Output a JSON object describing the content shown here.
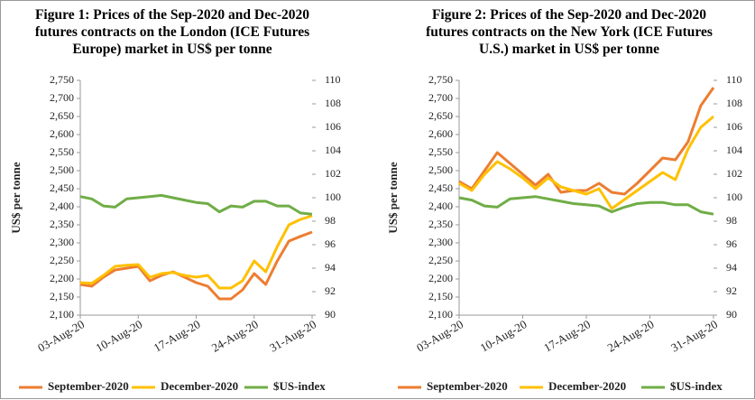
{
  "chart_data": [
    {
      "type": "line",
      "title": "Figure 1: Prices of the Sep-2020 and Dec-2020 futures contracts on the London (ICE Futures Europe) market in US$ per tonne",
      "ylabel": "US$ per tonne",
      "categories": [
        "03-Aug-20",
        null,
        null,
        null,
        null,
        "10-Aug-20",
        null,
        null,
        null,
        null,
        "17-Aug-20",
        null,
        null,
        null,
        null,
        "24-Aug-20",
        null,
        null,
        null,
        null,
        "31-Aug-20"
      ],
      "ylim": [
        2100,
        2750
      ],
      "yticks": [
        {
          "value": 2100,
          "label": "2,100"
        },
        {
          "value": 2150,
          "label": "2,150"
        },
        {
          "value": 2200,
          "label": "2,200"
        },
        {
          "value": 2250,
          "label": "2,250"
        },
        {
          "value": 2300,
          "label": "2,300"
        },
        {
          "value": 2350,
          "label": "2,350"
        },
        {
          "value": 2400,
          "label": "2,400"
        },
        {
          "value": 2450,
          "label": "2,450"
        },
        {
          "value": 2500,
          "label": "2,500"
        },
        {
          "value": 2550,
          "label": "2,550"
        },
        {
          "value": 2600,
          "label": "2,600"
        },
        {
          "value": 2650,
          "label": "2,650"
        },
        {
          "value": 2700,
          "label": "2,700"
        },
        {
          "value": 2750,
          "label": "2,750"
        }
      ],
      "y2lim": [
        90,
        110
      ],
      "y2ticks": [
        90,
        92,
        94,
        96,
        98,
        100,
        102,
        104,
        106,
        108,
        110
      ],
      "legend": "bottom",
      "series": [
        {
          "name": "September-2020",
          "color": "#ed7d31",
          "values": [
            2185,
            2180,
            2205,
            2225,
            2230,
            2235,
            2195,
            2210,
            2220,
            2205,
            2190,
            2180,
            2145,
            2145,
            2170,
            2215,
            2185,
            2250,
            2305,
            2318,
            2330
          ]
        },
        {
          "name": "December-2020",
          "color": "#ffc000",
          "values": [
            2190,
            2188,
            2210,
            2235,
            2238,
            2240,
            2205,
            2215,
            2218,
            2210,
            2205,
            2210,
            2175,
            2175,
            2195,
            2250,
            2220,
            2290,
            2350,
            2365,
            2375
          ]
        },
        {
          "name": "$US-index",
          "color": "#70ad47",
          "axis": "y2",
          "values": [
            100.1,
            99.9,
            99.3,
            99.2,
            99.9,
            100,
            100.1,
            100.2,
            100,
            99.8,
            99.6,
            99.5,
            98.8,
            99.3,
            99.2,
            99.7,
            99.7,
            99.3,
            99.3,
            98.7,
            98.6
          ]
        }
      ]
    },
    {
      "type": "line",
      "title": "Figure 2: Prices of the Sep-2020 and Dec-2020 futures contracts on the New York (ICE Futures U.S.) market in US$ per tonne",
      "ylabel": "US$ per tonne",
      "categories": [
        "03-Aug-20",
        null,
        null,
        null,
        null,
        "10-Aug-20",
        null,
        null,
        null,
        null,
        "17-Aug-20",
        null,
        null,
        null,
        null,
        "24-Aug-20",
        null,
        null,
        null,
        null,
        "31-Aug-20"
      ],
      "ylim": [
        2100,
        2750
      ],
      "yticks": [
        {
          "value": 2100,
          "label": "2,100"
        },
        {
          "value": 2150,
          "label": "2,150"
        },
        {
          "value": 2200,
          "label": "2,200"
        },
        {
          "value": 2250,
          "label": "2,250"
        },
        {
          "value": 2300,
          "label": "2,300"
        },
        {
          "value": 2350,
          "label": "2,350"
        },
        {
          "value": 2400,
          "label": "2,400"
        },
        {
          "value": 2450,
          "label": "2,450"
        },
        {
          "value": 2500,
          "label": "2,500"
        },
        {
          "value": 2550,
          "label": "2,550"
        },
        {
          "value": 2600,
          "label": "2,600"
        },
        {
          "value": 2650,
          "label": "2,650"
        },
        {
          "value": 2700,
          "label": "2,700"
        },
        {
          "value": 2750,
          "label": "2,750"
        }
      ],
      "y2lim": [
        90,
        110
      ],
      "y2ticks": [
        90,
        92,
        94,
        96,
        98,
        100,
        102,
        104,
        106,
        108,
        110
      ],
      "legend": "bottom",
      "series": [
        {
          "name": "September-2020",
          "color": "#ed7d31",
          "values": [
            2470,
            2450,
            2500,
            2550,
            2520,
            2490,
            2460,
            2490,
            2440,
            2445,
            2445,
            2465,
            2440,
            2435,
            2465,
            2500,
            2535,
            2530,
            2580,
            2680,
            2730
          ]
        },
        {
          "name": "December-2020",
          "color": "#ffc000",
          "values": [
            2465,
            2445,
            2490,
            2525,
            2505,
            2480,
            2450,
            2480,
            2455,
            2445,
            2435,
            2450,
            2395,
            2420,
            2445,
            2470,
            2495,
            2475,
            2560,
            2620,
            2650
          ]
        },
        {
          "name": "$US-index",
          "color": "#70ad47",
          "axis": "y2",
          "values": [
            100,
            99.8,
            99.3,
            99.2,
            99.9,
            100,
            100.1,
            99.9,
            99.7,
            99.5,
            99.4,
            99.3,
            98.8,
            99.2,
            99.5,
            99.6,
            99.6,
            99.4,
            99.4,
            98.8,
            98.6
          ]
        }
      ]
    }
  ]
}
